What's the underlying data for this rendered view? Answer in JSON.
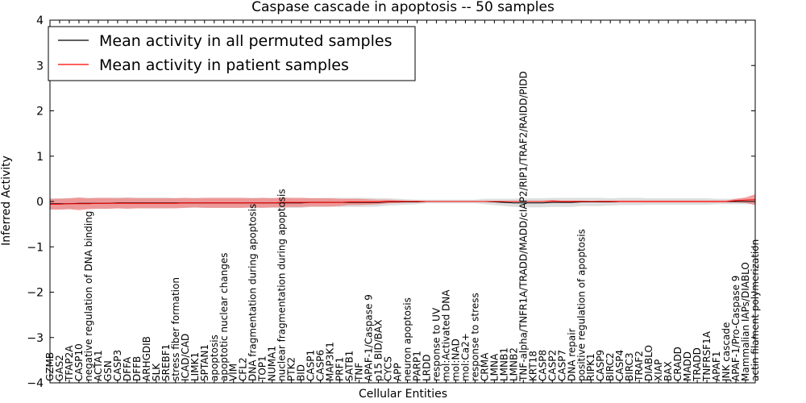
{
  "chart_data": {
    "type": "line",
    "title": "Caspase cascade in apoptosis -- 50 samples",
    "xlabel": "Cellular Entities",
    "ylabel": "Inferred Activity",
    "ylim": [
      -4,
      4
    ],
    "yticks": [
      -4,
      -3,
      -2,
      -1,
      0,
      1,
      2,
      3,
      4
    ],
    "ytick_labels": [
      "−4",
      "−3",
      "−2",
      "−1",
      "0",
      "1",
      "2",
      "3",
      "4"
    ],
    "grid": false,
    "legend_location": "top-left",
    "categories": [
      "GZMB",
      "GAS2",
      "TFAP2A",
      "CASP10",
      "negative regulation of DNA binding",
      "ACTA1",
      "GSN",
      "CASP3",
      "DFFA",
      "DFFB",
      "ARHGDIB",
      "SLK",
      "SREBF1",
      "stress fiber formation",
      "ICAD/CAD",
      "LIMK1",
      "SPTAN1",
      "apoptosis",
      "apoptotic nuclear changes",
      "VIM",
      "CFL2",
      "DNA fragmentation during apoptosis",
      "TOP1",
      "NUMA1",
      "nuclear fragmentation during apoptosis",
      "PTK2",
      "BID",
      "CASP1",
      "CASP6",
      "MAP3K1",
      "PRF1",
      "SATB1",
      "TNF",
      "APAF-1/Caspase 9",
      "p15 BID/BAX",
      "CYCS",
      "APP",
      "neuron apoptosis",
      "PARP1",
      "LRDD",
      "response to UV",
      "mol:Activated DNA",
      "mol:NAD",
      "mol:Ca2+",
      "response to stress",
      "CRMA",
      "LMNA",
      "LMNB1",
      "LMNB2",
      "TNF-alpha/TNFR1A/TRADD/MADD/cIAP2/RIP1/TRAF2/RAIDD/PIDD",
      "KRT18",
      "CASP8",
      "CASP2",
      "CASP7",
      "DNA repair",
      "positive regulation of apoptosis",
      "RIPK1",
      "CASP9",
      "BIRC2",
      "CASP4",
      "BIRC3",
      "TRAF2",
      "DIABLO",
      "XIAP",
      "BAX",
      "CRADD",
      "MADD",
      "TRADD",
      "TNFRSF1A",
      "APAF1",
      "JNK cascade",
      "APAF-1/Pro-Caspase 9",
      "Mammalian IAPs/DIABLO",
      "actin filament polymerization"
    ],
    "series": [
      {
        "name": "Mean activity in all permuted samples",
        "color": "#000000",
        "values": [
          -0.05,
          -0.05,
          -0.05,
          -0.04,
          -0.04,
          -0.04,
          -0.04,
          -0.03,
          -0.03,
          -0.03,
          -0.03,
          -0.03,
          -0.03,
          -0.03,
          -0.03,
          -0.03,
          -0.03,
          -0.03,
          -0.03,
          -0.03,
          -0.03,
          -0.03,
          -0.03,
          -0.03,
          -0.03,
          -0.03,
          -0.03,
          -0.02,
          -0.02,
          -0.02,
          -0.02,
          -0.02,
          -0.02,
          -0.02,
          -0.02,
          -0.01,
          -0.01,
          -0.01,
          -0.01,
          0.0,
          0.0,
          0.0,
          0.0,
          0.0,
          0.0,
          0.0,
          -0.01,
          -0.02,
          -0.03,
          -0.03,
          -0.03,
          -0.03,
          -0.02,
          -0.02,
          -0.02,
          -0.01,
          -0.01,
          -0.01,
          -0.01,
          0.0,
          0.0,
          0.0,
          0.0,
          0.0,
          0.0,
          0.0,
          0.0,
          0.0,
          0.0,
          0.0,
          0.0,
          0.0,
          0.0,
          0.0
        ],
        "band": [
          0.12,
          0.12,
          0.12,
          0.12,
          0.12,
          0.12,
          0.12,
          0.12,
          0.12,
          0.12,
          0.12,
          0.12,
          0.12,
          0.11,
          0.11,
          0.11,
          0.11,
          0.11,
          0.11,
          0.11,
          0.11,
          0.11,
          0.11,
          0.11,
          0.11,
          0.11,
          0.11,
          0.1,
          0.1,
          0.1,
          0.1,
          0.1,
          0.1,
          0.1,
          0.09,
          0.08,
          0.07,
          0.06,
          0.05,
          0.04,
          0.04,
          0.04,
          0.04,
          0.04,
          0.04,
          0.06,
          0.07,
          0.08,
          0.09,
          0.1,
          0.1,
          0.1,
          0.1,
          0.1,
          0.1,
          0.09,
          0.09,
          0.09,
          0.08,
          0.08,
          0.08,
          0.08,
          0.07,
          0.07,
          0.07,
          0.07,
          0.07,
          0.07,
          0.07,
          0.06,
          0.06,
          0.06,
          0.06,
          0.06
        ],
        "band_color": "#d8d8d8"
      },
      {
        "name": "Mean activity in patient samples",
        "color": "#ff0000",
        "values": [
          -0.06,
          -0.06,
          -0.05,
          -0.05,
          -0.05,
          -0.04,
          -0.04,
          -0.04,
          -0.04,
          -0.04,
          -0.04,
          -0.04,
          -0.04,
          -0.04,
          -0.03,
          -0.03,
          -0.03,
          -0.03,
          -0.03,
          -0.03,
          -0.03,
          -0.03,
          -0.03,
          -0.03,
          -0.02,
          -0.02,
          -0.02,
          -0.02,
          -0.02,
          -0.02,
          -0.02,
          -0.01,
          -0.01,
          -0.01,
          -0.01,
          0.0,
          0.0,
          0.0,
          0.0,
          0.0,
          0.0,
          0.0,
          0.0,
          0.0,
          0.0,
          0.0,
          0.0,
          0.0,
          0.0,
          0.0,
          0.0,
          0.0,
          0.01,
          0.0,
          0.0,
          0.0,
          0.0,
          0.0,
          0.0,
          0.0,
          0.0,
          0.0,
          0.0,
          0.0,
          0.0,
          0.0,
          0.0,
          0.0,
          0.0,
          0.0,
          0.0,
          0.02,
          0.03,
          0.04
        ],
        "band": [
          0.12,
          0.12,
          0.12,
          0.14,
          0.12,
          0.12,
          0.12,
          0.11,
          0.12,
          0.11,
          0.11,
          0.11,
          0.11,
          0.11,
          0.11,
          0.1,
          0.11,
          0.11,
          0.11,
          0.11,
          0.11,
          0.1,
          0.11,
          0.1,
          0.11,
          0.1,
          0.1,
          0.09,
          0.09,
          0.09,
          0.08,
          0.07,
          0.07,
          0.06,
          0.05,
          0.04,
          0.03,
          0.02,
          0.02,
          0.01,
          0.01,
          0.01,
          0.01,
          0.01,
          0.01,
          0.01,
          0.01,
          0.01,
          0.01,
          0.01,
          0.01,
          0.01,
          0.02,
          0.02,
          0.02,
          0.02,
          0.01,
          0.02,
          0.02,
          0.02,
          0.02,
          0.02,
          0.02,
          0.02,
          0.02,
          0.02,
          0.02,
          0.02,
          0.02,
          0.02,
          0.02,
          0.04,
          0.06,
          0.12
        ],
        "band_color": "#f08080"
      }
    ]
  }
}
